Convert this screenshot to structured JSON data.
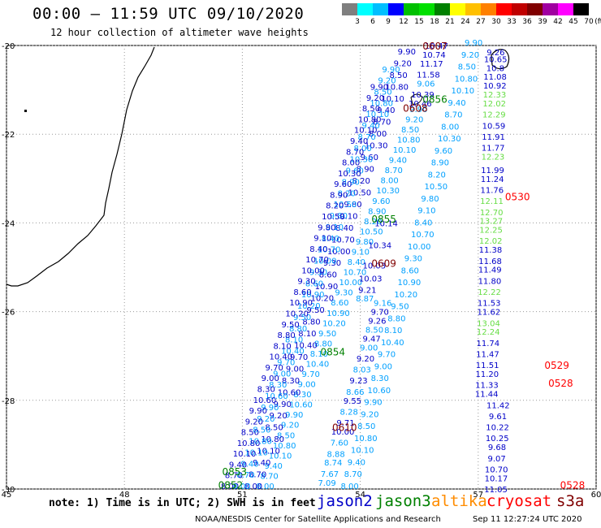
{
  "header": {
    "title": "00:00 – 11:59 UTC 09/10/2020",
    "subtitle": "12 hour collection of altimeter wave heights"
  },
  "legend": {
    "unit": "(ft)",
    "labels": [
      "3",
      "6",
      "9",
      "12",
      "15",
      "18",
      "21",
      "24",
      "27",
      "30",
      "33",
      "36",
      "39",
      "42",
      "45",
      "70"
    ],
    "colors": [
      "#7f7f7f",
      "#00ffff",
      "#00bfff",
      "#0000ff",
      "#00c000",
      "#00e000",
      "#008000",
      "#ffff00",
      "#ffc000",
      "#ff8000",
      "#ff0000",
      "#c00000",
      "#800000",
      "#a000a0",
      "#ff00ff",
      "#000000"
    ]
  },
  "map": {
    "lon_range": [
      45,
      60
    ],
    "lat_range": [
      -30,
      -20
    ],
    "lon_ticks": [
      "45",
      "48",
      "51",
      "54",
      "57",
      "60"
    ],
    "lat_ticks": [
      "-20",
      "-22",
      "-24",
      "-26",
      "-28",
      "-30"
    ],
    "grid": "dotted",
    "colors": {
      "jason2": "#0000c8",
      "jason3": "#008000",
      "jason3_light": "#00a0ff",
      "altika": "#ff8c00",
      "cryosat": "#ff0000",
      "s3a": "#800000",
      "light_green": "#66dd44"
    }
  },
  "chart_data": {
    "type": "map",
    "pass_times": [
      {
        "label": "0607",
        "lon": 55.9,
        "lat": -20.0,
        "sat": "s3a"
      },
      {
        "label": "0856",
        "lon": 55.9,
        "lat": -21.2,
        "sat": "jason3"
      },
      {
        "label": "0608",
        "lon": 55.4,
        "lat": -21.4,
        "sat": "s3a"
      },
      {
        "label": "0530",
        "lon": 58.0,
        "lat": -23.4,
        "sat": "cryosat"
      },
      {
        "label": "0855",
        "lon": 54.6,
        "lat": -23.9,
        "sat": "jason3"
      },
      {
        "label": "0609",
        "lon": 54.6,
        "lat": -24.9,
        "sat": "s3a"
      },
      {
        "label": "0854",
        "lon": 53.3,
        "lat": -26.9,
        "sat": "jason3"
      },
      {
        "label": "0529",
        "lon": 59.0,
        "lat": -27.2,
        "sat": "cryosat"
      },
      {
        "label": "0528",
        "lon": 59.1,
        "lat": -27.6,
        "sat": "cryosat"
      },
      {
        "label": "0610",
        "lon": 53.6,
        "lat": -28.6,
        "sat": "s3a"
      },
      {
        "label": "0853",
        "lon": 50.8,
        "lat": -29.6,
        "sat": "jason3"
      },
      {
        "label": "0852",
        "lon": 50.7,
        "lat": -29.9,
        "sat": "jason3"
      },
      {
        "label": "0528",
        "lon": 59.4,
        "lat": -29.9,
        "sat": "cryosat"
      }
    ],
    "cryosat_track": [
      {
        "lat": -20.15,
        "v": "9.26",
        "c": "jason2"
      },
      {
        "lat": -20.3,
        "v": "10.65",
        "c": "jason2"
      },
      {
        "lat": -20.5,
        "v": "10.8",
        "c": "jason2"
      },
      {
        "lat": -20.7,
        "v": "11.08",
        "c": "jason2"
      },
      {
        "lat": -20.9,
        "v": "10.92",
        "c": "jason2"
      },
      {
        "lat": -21.1,
        "v": "12.33",
        "c": "light_green"
      },
      {
        "lat": -21.3,
        "v": "12.02",
        "c": "light_green"
      },
      {
        "lat": -21.55,
        "v": "12.29",
        "c": "light_green"
      },
      {
        "lat": -21.8,
        "v": "10.59",
        "c": "jason2"
      },
      {
        "lat": -22.05,
        "v": "11.91",
        "c": "jason2"
      },
      {
        "lat": -22.3,
        "v": "11.77",
        "c": "jason2"
      },
      {
        "lat": -22.5,
        "v": "12.23",
        "c": "light_green"
      },
      {
        "lat": -22.8,
        "v": "11.99",
        "c": "jason2"
      },
      {
        "lat": -23.0,
        "v": "11.24",
        "c": "jason2"
      },
      {
        "lat": -23.25,
        "v": "11.76",
        "c": "jason2"
      },
      {
        "lat": -23.5,
        "v": "12.11",
        "c": "light_green"
      },
      {
        "lat": -23.75,
        "v": "12.70",
        "c": "light_green"
      },
      {
        "lat": -23.95,
        "v": "13.27",
        "c": "light_green"
      },
      {
        "lat": -24.15,
        "v": "12.25",
        "c": "light_green"
      },
      {
        "lat": -24.4,
        "v": "12.02",
        "c": "light_green"
      },
      {
        "lat": -24.6,
        "v": "11.38",
        "c": "jason2"
      },
      {
        "lat": -24.85,
        "v": "11.68",
        "c": "jason2"
      },
      {
        "lat": -25.05,
        "v": "11.49",
        "c": "jason2"
      },
      {
        "lat": -25.3,
        "v": "11.80",
        "c": "jason2"
      },
      {
        "lat": -25.55,
        "v": "12.22",
        "c": "light_green"
      },
      {
        "lat": -25.8,
        "v": "11.53",
        "c": "jason2"
      },
      {
        "lat": -26.0,
        "v": "11.62",
        "c": "jason2"
      },
      {
        "lat": -26.25,
        "v": "13.04",
        "c": "light_green"
      },
      {
        "lat": -26.45,
        "v": "12.24",
        "c": "light_green"
      },
      {
        "lat": -26.7,
        "v": "11.74",
        "c": "jason2"
      },
      {
        "lat": -26.95,
        "v": "11.47",
        "c": "jason2"
      },
      {
        "lat": -27.2,
        "v": "11.51",
        "c": "jason2"
      },
      {
        "lat": -27.4,
        "v": "11.20",
        "c": "jason2"
      },
      {
        "lat": -27.65,
        "v": "11.33",
        "c": "jason2"
      },
      {
        "lat": -27.85,
        "v": "11.44",
        "c": "jason2"
      },
      {
        "lat": -28.1,
        "v": "11.42",
        "c": "jason2"
      },
      {
        "lat": -28.35,
        "v": "9.61",
        "c": "jason2"
      },
      {
        "lat": -28.6,
        "v": "10.22",
        "c": "jason2"
      },
      {
        "lat": -28.85,
        "v": "10.25",
        "c": "jason2"
      },
      {
        "lat": -29.05,
        "v": "9.68",
        "c": "jason2"
      },
      {
        "lat": -29.3,
        "v": "9.07",
        "c": "jason2"
      },
      {
        "lat": -29.55,
        "v": "10.70",
        "c": "jason2"
      },
      {
        "lat": -29.75,
        "v": "10.17",
        "c": "jason2"
      },
      {
        "lat": -30.0,
        "v": "11.05",
        "c": "jason2"
      }
    ],
    "inner_track": [
      {
        "lat": -25.8,
        "v": "9.16",
        "c": "jason3_light"
      },
      {
        "lat": -26.0,
        "v": "9.70",
        "c": "jason2"
      },
      {
        "lat": -26.2,
        "v": "9.26",
        "c": "jason2"
      },
      {
        "lat": -26.4,
        "v": "8.50",
        "c": "jason3_light"
      },
      {
        "lat": -26.6,
        "v": "9.47",
        "c": "jason2"
      },
      {
        "lat": -26.8,
        "v": "9.00",
        "c": "jason3_light"
      },
      {
        "lat": -27.05,
        "v": "9.20",
        "c": "jason2"
      },
      {
        "lat": -27.3,
        "v": "8.03",
        "c": "jason3_light"
      },
      {
        "lat": -27.55,
        "v": "9.23",
        "c": "jason2"
      },
      {
        "lat": -27.8,
        "v": "8.66",
        "c": "jason3_light"
      },
      {
        "lat": -28.0,
        "v": "9.55",
        "c": "jason2"
      },
      {
        "lat": -28.25,
        "v": "8.28",
        "c": "jason3_light"
      },
      {
        "lat": -28.5,
        "v": "9.71",
        "c": "jason2"
      },
      {
        "lat": -28.7,
        "v": "10.00",
        "c": "jason2"
      },
      {
        "lat": -28.95,
        "v": "7.60",
        "c": "jason3_light"
      },
      {
        "lat": -29.2,
        "v": "8.88",
        "c": "jason3_light"
      },
      {
        "lat": -29.4,
        "v": "8.74",
        "c": "jason3_light"
      },
      {
        "lat": -29.65,
        "v": "7.67",
        "c": "jason3_light"
      },
      {
        "lat": -29.85,
        "v": "7.09",
        "c": "jason3_light"
      }
    ],
    "upper_track": [
      {
        "lat": -20.0,
        "v": "10.47",
        "c": "jason2"
      },
      {
        "lat": -20.2,
        "v": "10.74",
        "c": "jason2"
      },
      {
        "lat": -20.4,
        "v": "11.17",
        "c": "jason2"
      },
      {
        "lat": -20.65,
        "v": "11.58",
        "c": "jason2"
      },
      {
        "lat": -20.85,
        "v": "9.06",
        "c": "jason3_light"
      },
      {
        "lat": -21.1,
        "v": "10.39",
        "c": "jason2"
      },
      {
        "lat": -21.3,
        "v": "10.46",
        "c": "jason2"
      },
      {
        "lat": -24.0,
        "v": "10.14",
        "c": "jason2"
      },
      {
        "lat": -24.5,
        "v": "10.34",
        "c": "jason2"
      },
      {
        "lat": -24.95,
        "v": "10.03",
        "c": "jason2"
      },
      {
        "lat": -25.25,
        "v": "10.03",
        "c": "jason2"
      },
      {
        "lat": -25.5,
        "v": "9.21",
        "c": "jason2"
      },
      {
        "lat": -25.7,
        "v": "8.87",
        "c": "jason3_light"
      }
    ]
  },
  "footer": {
    "note": "note: 1) Time is in UTC; 2) SWH is in feet",
    "sat_jason2": "jason2",
    "sat_jason3": "jason3",
    "sat_altika": "altika",
    "sat_cryosat": "cryosat",
    "sat_s3a": "s3a",
    "credit": "NOAA/NESDIS Center for Satellite Applications and Research",
    "timestamp": "Sep 11 12:27:24 UTC 2020"
  }
}
